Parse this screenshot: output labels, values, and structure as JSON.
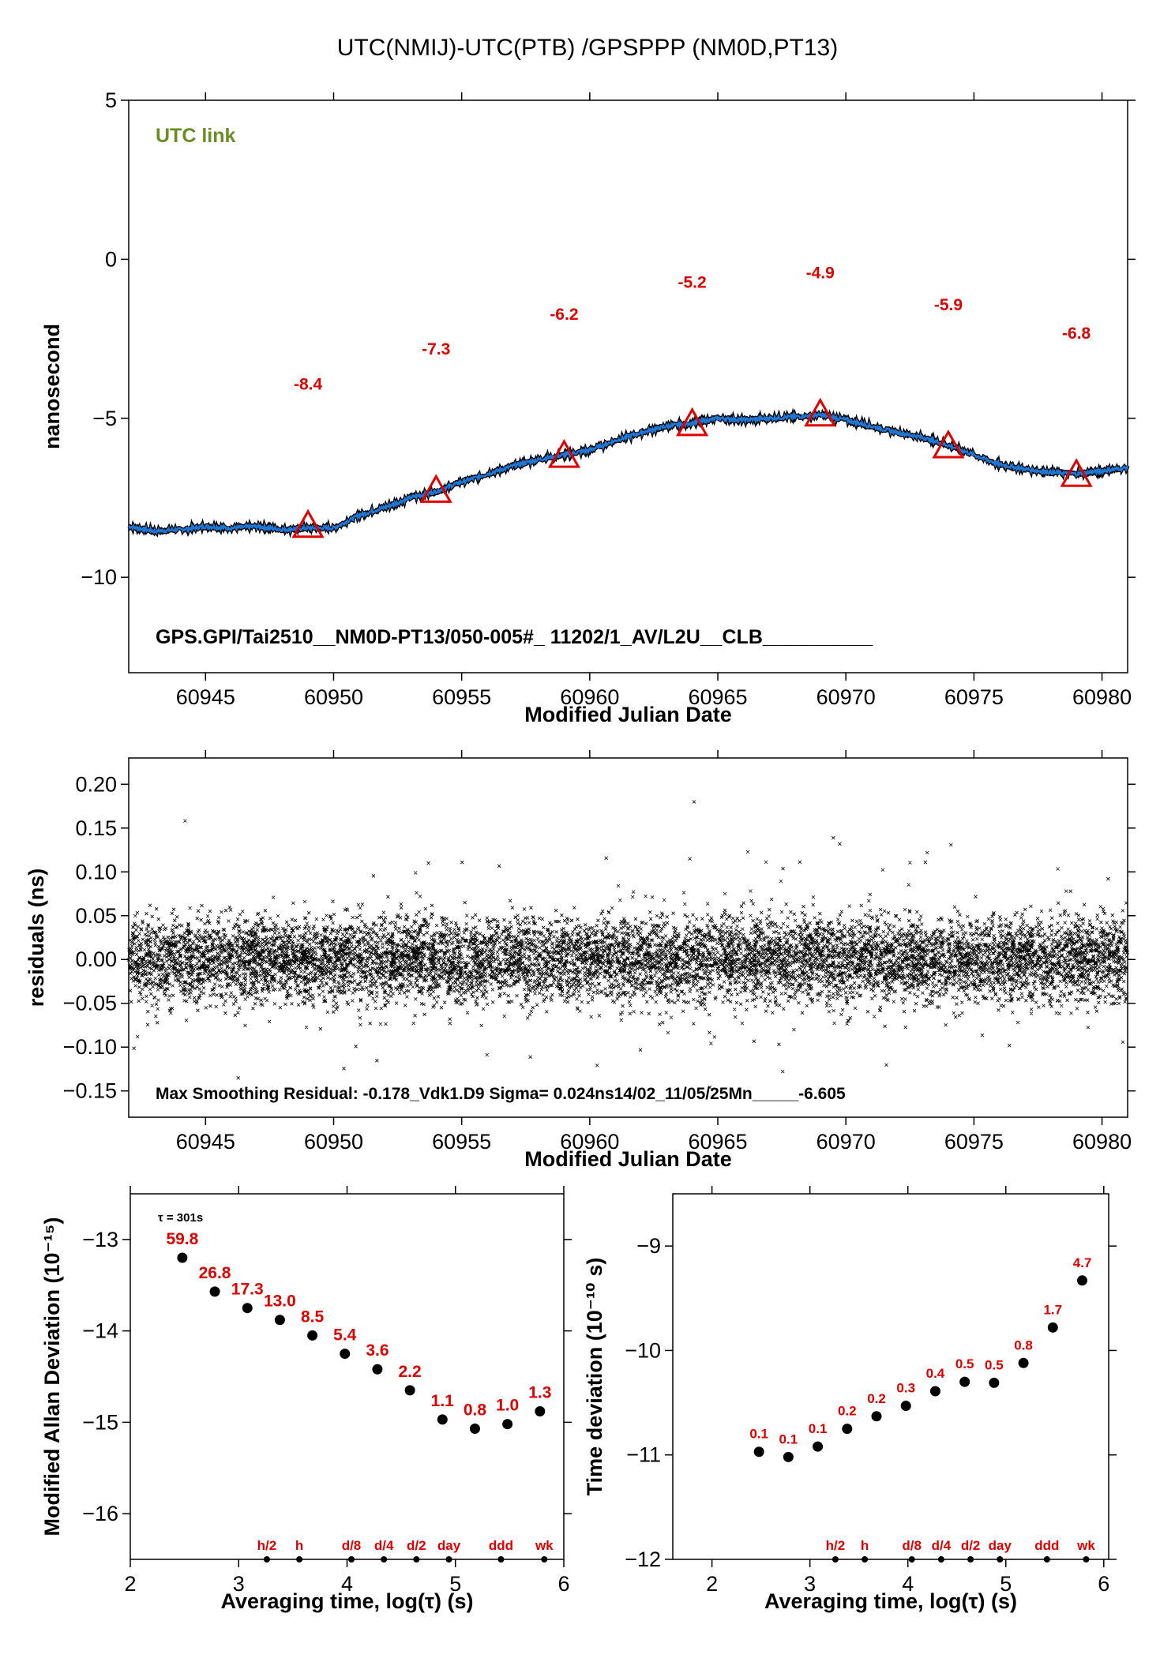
{
  "figure_title": "UTC(NMIJ)-UTC(PTB)  /GPSPPP  (NM0D,PT13)",
  "colors": {
    "trace": "#1f77d4",
    "marker": "#e00000",
    "label_red": "#e00000",
    "green": "#6b8e23"
  },
  "chart_data": [
    {
      "type": "line",
      "panel": "time-series",
      "xlabel": "Modified Julian Date",
      "ylabel": "nanosecond",
      "xlim": [
        60942,
        60981
      ],
      "ylim": [
        -13,
        5
      ],
      "xticks": [
        60945,
        60950,
        60955,
        60960,
        60965,
        60970,
        60975,
        60980
      ],
      "yticks": [
        5,
        0,
        -5,
        -10
      ],
      "ytick_labels": [
        "5",
        "0",
        "−5",
        "−10"
      ],
      "annotation_tl": "UTC link",
      "annotation_bottom": "GPS.GPI/Tai2510__NM0D-PT13/050-005#_  11202/1_AV/L2U__CLB__________",
      "series": [
        {
          "x": [
            60942,
            60943,
            60944,
            60945,
            60946,
            60947,
            60948,
            60949,
            60950,
            60951,
            60952,
            60953,
            60954,
            60955,
            60956,
            60957,
            60958,
            60959,
            60960,
            60961,
            60962,
            60963,
            60964,
            60965,
            60966,
            60967,
            60968,
            60969,
            60970,
            60971,
            60972,
            60973,
            60974,
            60975,
            60976,
            60977,
            60978,
            60979,
            60980,
            60981
          ],
          "y": [
            -8.4,
            -8.55,
            -8.5,
            -8.4,
            -8.45,
            -8.4,
            -8.5,
            -8.45,
            -8.45,
            -8.05,
            -7.8,
            -7.5,
            -7.3,
            -7.0,
            -6.75,
            -6.5,
            -6.3,
            -6.15,
            -6.0,
            -5.7,
            -5.45,
            -5.25,
            -5.15,
            -5.0,
            -5.05,
            -5.0,
            -4.95,
            -4.9,
            -5.05,
            -5.25,
            -5.45,
            -5.6,
            -5.85,
            -6.15,
            -6.45,
            -6.6,
            -6.7,
            -6.75,
            -6.65,
            -6.55
          ]
        }
      ],
      "markers": {
        "x": [
          60949,
          60954,
          60959,
          60964,
          60969,
          60974,
          60979
        ],
        "y": [
          -8.4,
          -7.3,
          -6.2,
          -5.2,
          -4.9,
          -5.9,
          -6.8
        ],
        "labels": [
          "-8.4",
          "-7.3",
          "-6.2",
          "-5.2",
          "-4.9",
          "-5.9",
          "-6.8"
        ]
      }
    },
    {
      "type": "scatter",
      "panel": "residuals",
      "xlabel": "Modified Julian Date",
      "ylabel": "residuals (ns)",
      "xlim": [
        60942,
        60981
      ],
      "ylim": [
        -0.18,
        0.23
      ],
      "xticks": [
        60945,
        60950,
        60955,
        60960,
        60965,
        60970,
        60975,
        60980
      ],
      "yticks": [
        0.2,
        0.15,
        0.1,
        0.05,
        0.0,
        -0.05,
        -0.1,
        -0.15
      ],
      "ytick_labels": [
        "0.20",
        "0.15",
        "0.10",
        "0.05",
        "0.00",
        "−0.05",
        "−0.10",
        "−0.15"
      ],
      "sigma": 0.024,
      "annotation_bottom": "Max Smoothing Residual: -0.178_Vdk1.D9  Sigma= 0.024ns14/02_11/05/25Mn_____-6.605"
    },
    {
      "type": "scatter",
      "panel": "modified-allan-deviation",
      "xlabel": "Averaging time, log(τ) (s)",
      "ylabel": "Modified Allan Deviation (10⁻¹⁵)",
      "xlim": [
        2,
        6
      ],
      "ylim": [
        -16.5,
        -12.5
      ],
      "xticks": [
        2,
        3,
        4,
        5,
        6
      ],
      "yticks": [
        -13,
        -14,
        -15,
        -16
      ],
      "ytick_labels": [
        "−13",
        "−14",
        "−15",
        "−16"
      ],
      "tau_note": "τ = 301s",
      "x": [
        2.48,
        2.78,
        3.08,
        3.38,
        3.68,
        3.98,
        4.28,
        4.58,
        4.88,
        5.18,
        5.48,
        5.78
      ],
      "y": [
        -13.2,
        -13.57,
        -13.75,
        -13.88,
        -14.05,
        -14.25,
        -14.42,
        -14.65,
        -14.97,
        -15.07,
        -15.02,
        -14.88
      ],
      "labels": [
        "59.8",
        "26.8",
        "17.3",
        "13.0",
        "8.5",
        "5.4",
        "3.6",
        "2.2",
        "1.1",
        "0.8",
        "1.0",
        "1.3"
      ],
      "time_marks": {
        "x": [
          3.26,
          3.56,
          4.04,
          4.34,
          4.64,
          4.94,
          5.42,
          5.82
        ],
        "labels": [
          "h/2",
          "h",
          "d/8",
          "d/4",
          "d/2",
          "day",
          "ddd",
          "wk"
        ]
      }
    },
    {
      "type": "scatter",
      "panel": "time-deviation",
      "xlabel": "Averaging time, log(τ) (s)",
      "ylabel": "Time deviation (10⁻¹⁰ s)",
      "xlim": [
        1.6,
        6.05
      ],
      "ylim": [
        -12,
        -8.5
      ],
      "xticks": [
        2,
        3,
        4,
        5,
        6
      ],
      "yticks": [
        -9,
        -10,
        -11,
        -12
      ],
      "ytick_labels": [
        "−9",
        "−10",
        "−11",
        "−12"
      ],
      "x": [
        2.48,
        2.78,
        3.08,
        3.38,
        3.68,
        3.98,
        4.28,
        4.58,
        4.88,
        5.18,
        5.48,
        5.78
      ],
      "y": [
        -10.97,
        -11.02,
        -10.92,
        -10.75,
        -10.63,
        -10.53,
        -10.39,
        -10.3,
        -10.31,
        -10.12,
        -9.78,
        -9.33
      ],
      "labels": [
        "0.1",
        "0.1",
        "0.1",
        "0.2",
        "0.2",
        "0.3",
        "0.4",
        "0.5",
        "0.5",
        "0.8",
        "1.7",
        "4.7"
      ],
      "time_marks": {
        "x": [
          3.26,
          3.56,
          4.04,
          4.34,
          4.64,
          4.94,
          5.42,
          5.82
        ],
        "labels": [
          "h/2",
          "h",
          "d/8",
          "d/4",
          "d/2",
          "day",
          "ddd",
          "wk"
        ]
      }
    }
  ]
}
